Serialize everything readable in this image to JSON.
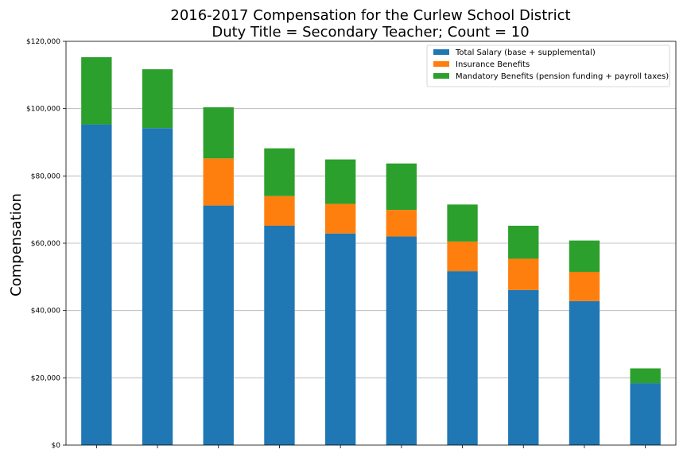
{
  "chart_data": {
    "type": "bar",
    "stacked": true,
    "title": "2016-2017 Compensation for the Curlew School District",
    "subtitle": "Duty Title = Secondary Teacher; Count = 10",
    "xlabel": "",
    "ylabel": "Compensation",
    "ylim": [
      0,
      120000
    ],
    "yticks": [
      0,
      20000,
      40000,
      60000,
      80000,
      100000,
      120000
    ],
    "ytick_labels": [
      "$0",
      "$20,000",
      "$40,000",
      "$60,000",
      "$80,000",
      "$100,000",
      "$120,000"
    ],
    "grid": "horizontal",
    "legend_position": "top-right",
    "categories": [
      "",
      "",
      "",
      "",
      "",
      "",
      "",
      "",
      "",
      ""
    ],
    "series": [
      {
        "name": "Total Salary (base + supplemental)",
        "color": "#1f77b4",
        "values": [
          95300,
          94200,
          71200,
          65200,
          62900,
          62000,
          51700,
          46100,
          42800,
          18400
        ]
      },
      {
        "name": "Insurance Benefits",
        "color": "#ff7f0e",
        "values": [
          0,
          0,
          14000,
          8800,
          8800,
          7900,
          8800,
          9300,
          8700,
          0
        ]
      },
      {
        "name": "Mandatory Benefits (pension funding + payroll taxes)",
        "color": "#2ca02c",
        "values": [
          20000,
          17500,
          15200,
          14200,
          13200,
          13800,
          11000,
          9800,
          9300,
          4400
        ]
      }
    ]
  }
}
